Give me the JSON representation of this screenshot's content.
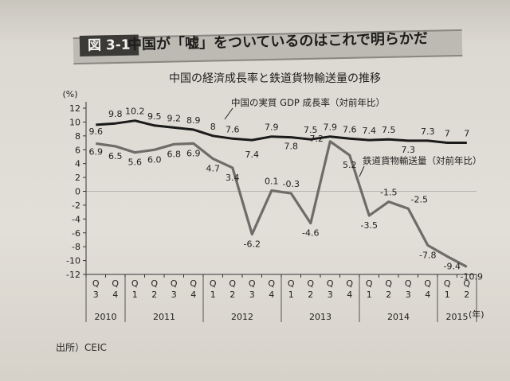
{
  "figure": {
    "label": "図 3-1",
    "headline": "中国が「嘘」をついているのはこれで明らかだ",
    "source": "出所）CEIC"
  },
  "chart_data": {
    "type": "line",
    "title": "中国の経済成長率と鉄道貨物輸送量の推移",
    "ylabel": "(%)",
    "xlabel_unit": "(年)",
    "ylim": [
      -12,
      12
    ],
    "yticks": [
      12,
      10,
      8,
      6,
      4,
      2,
      0,
      -2,
      -4,
      -6,
      -8,
      -10,
      -12
    ],
    "quarters": [
      "Q3",
      "Q4",
      "Q1",
      "Q2",
      "Q3",
      "Q4",
      "Q1",
      "Q2",
      "Q3",
      "Q4",
      "Q1",
      "Q2",
      "Q3",
      "Q4",
      "Q1",
      "Q2",
      "Q3",
      "Q4",
      "Q1",
      "Q2"
    ],
    "quarter_labels": [
      {
        "q": "Q",
        "n": "3"
      },
      {
        "q": "Q",
        "n": "4"
      },
      {
        "q": "Q",
        "n": "1"
      },
      {
        "q": "Q",
        "n": "2"
      },
      {
        "q": "Q",
        "n": "3"
      },
      {
        "q": "Q",
        "n": "4"
      },
      {
        "q": "Q",
        "n": "1"
      },
      {
        "q": "Q",
        "n": "2"
      },
      {
        "q": "Q",
        "n": "3"
      },
      {
        "q": "Q",
        "n": "4"
      },
      {
        "q": "Q",
        "n": "1"
      },
      {
        "q": "Q",
        "n": "2"
      },
      {
        "q": "Q",
        "n": "3"
      },
      {
        "q": "Q",
        "n": "4"
      },
      {
        "q": "Q",
        "n": "1"
      },
      {
        "q": "Q",
        "n": "2"
      },
      {
        "q": "Q",
        "n": "3"
      },
      {
        "q": "Q",
        "n": "4"
      },
      {
        "q": "Q",
        "n": "1"
      },
      {
        "q": "Q",
        "n": "2"
      }
    ],
    "years": [
      {
        "label": "2010",
        "start": 0,
        "end": 1
      },
      {
        "label": "2011",
        "start": 2,
        "end": 5
      },
      {
        "label": "2012",
        "start": 6,
        "end": 9
      },
      {
        "label": "2013",
        "start": 10,
        "end": 13
      },
      {
        "label": "2014",
        "start": 14,
        "end": 17
      },
      {
        "label": "2015",
        "start": 18,
        "end": 19
      }
    ],
    "series": [
      {
        "name": "中国の実質 GDP 成長率（対前年比）",
        "color": "#1a1a1a",
        "values": [
          9.6,
          9.8,
          10.2,
          9.5,
          9.2,
          8.9,
          8.0,
          7.6,
          7.4,
          7.9,
          7.8,
          7.5,
          7.9,
          7.6,
          7.4,
          7.5,
          7.3,
          7.3,
          7.0,
          7.0
        ],
        "value_labels": [
          "9.6",
          "9.8",
          "10.2",
          "9.5",
          "9.2",
          "8.9",
          "8",
          "7.6",
          "7.4",
          "7.9",
          "7.8",
          "7.5",
          "7.9",
          "7.6",
          "7.4",
          "7.5",
          "7.3",
          "7.3",
          "7",
          "7"
        ]
      },
      {
        "name": "鉄道貨物輸送量（対前年比）",
        "color": "#6e6c68",
        "values": [
          6.9,
          6.5,
          5.6,
          6.0,
          6.8,
          6.9,
          4.7,
          3.4,
          -6.2,
          0.1,
          -0.3,
          -4.6,
          7.2,
          5.2,
          -3.5,
          -1.5,
          -2.5,
          -7.8,
          -9.4,
          -10.9
        ],
        "value_labels": [
          "6.9",
          "6.5",
          "5.6",
          "6.0",
          "6.8",
          "6.9",
          "4.7",
          "3.4",
          "-6.2",
          "0.1",
          "-0.3",
          "-4.6",
          "7.2",
          "5.2",
          "-3.5",
          "-1.5",
          "-2.5",
          "-7.8",
          "-9.4",
          "-10.9"
        ]
      }
    ]
  }
}
